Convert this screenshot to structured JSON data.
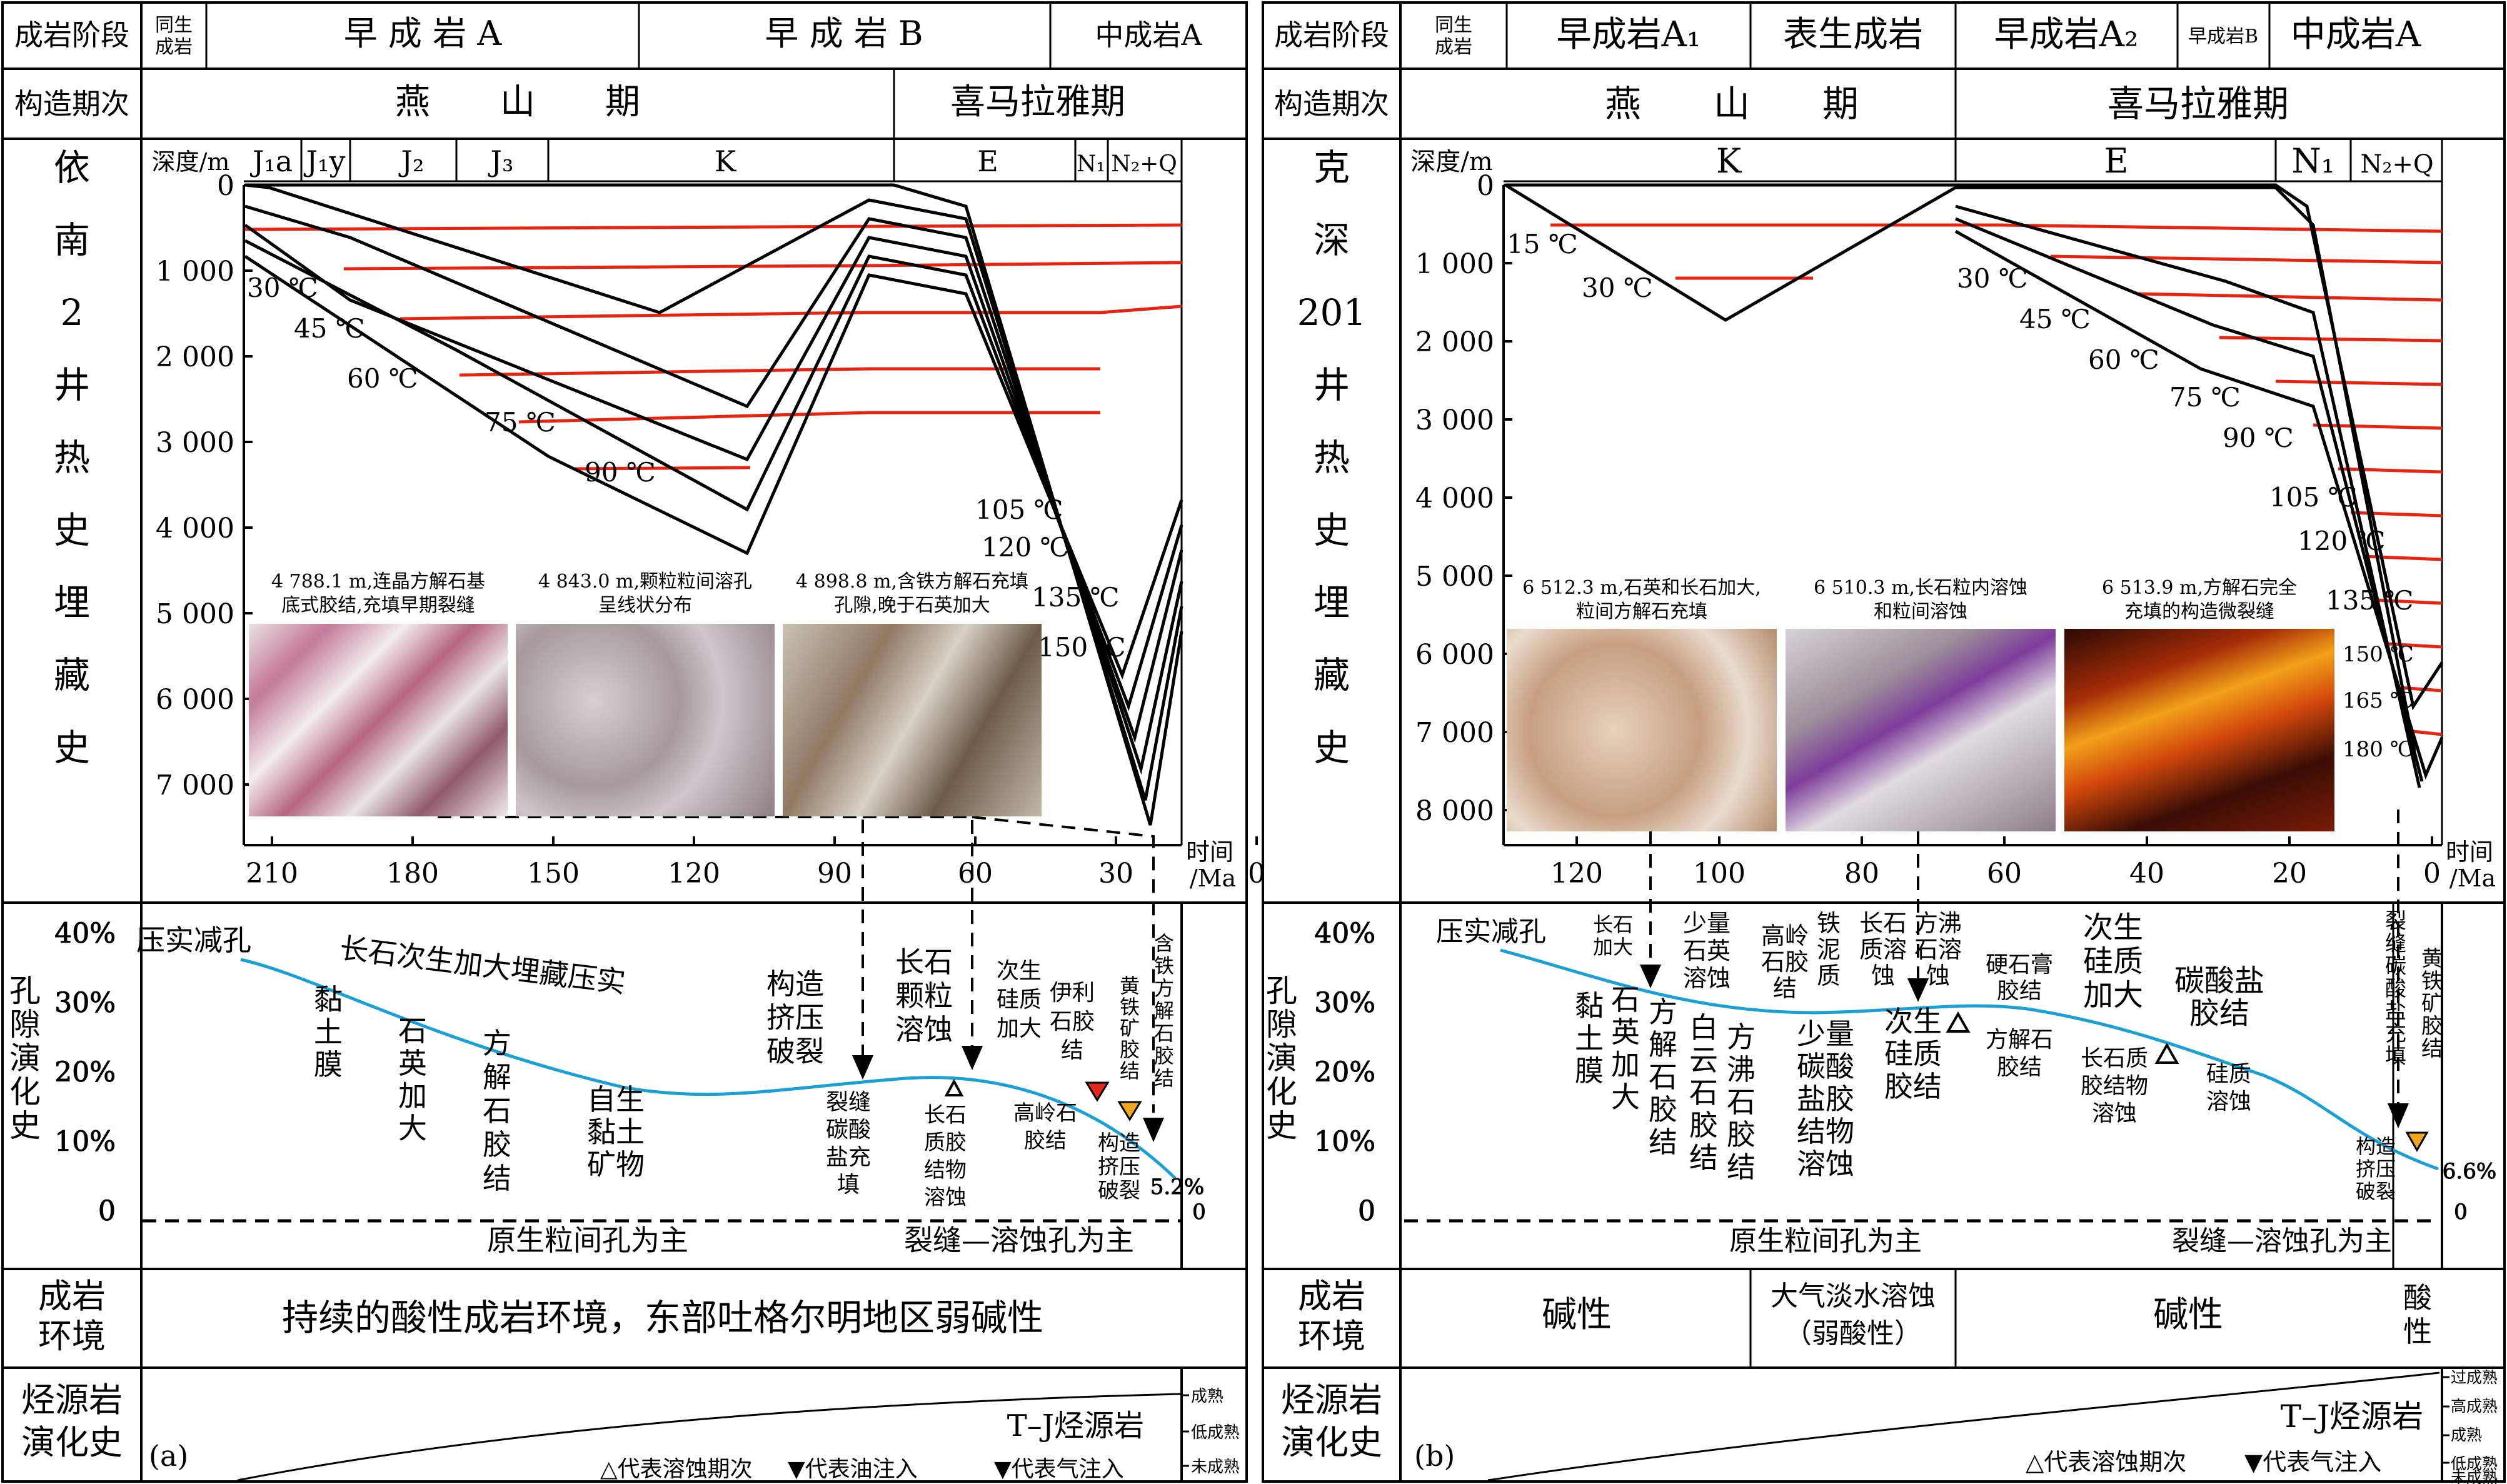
{
  "colors": {
    "isotherm": "#e8230f",
    "porosity": "#1a9fd6",
    "oil_marker": "#e0281b",
    "gas_marker": "#f2a81d",
    "line": "#000000"
  },
  "panelA": {
    "tag": "(a)",
    "well": [
      "依",
      "南",
      "2",
      "井",
      "热",
      "史",
      "埋",
      "藏",
      "史"
    ],
    "row_labels": {
      "stage": "成岩阶段",
      "tectonic": "构造期次",
      "porosity": [
        "孔",
        "隙",
        "演",
        "化",
        "史"
      ],
      "environment": [
        "成岩",
        "环境"
      ],
      "source": [
        "烃源岩",
        "演化史"
      ]
    },
    "stages": [
      "同生\n成岩",
      "早 成 岩 A",
      "早 成 岩 B",
      "中成岩A"
    ],
    "tectonic": [
      "燕　　山　　期",
      "喜马拉雅期"
    ],
    "strata": [
      "J₁a",
      "J₁y",
      "J₂",
      "J₃",
      "K",
      "E",
      "N₁",
      "N₂+Q"
    ],
    "depth_axis_label": "深度/m",
    "depth_ticks": [
      "0",
      "1 000",
      "2 000",
      "3 000",
      "4 000",
      "5 000",
      "6 000",
      "7 000"
    ],
    "time_ticks": [
      "210",
      "180",
      "150",
      "120",
      "90",
      "60",
      "30",
      "0"
    ],
    "time_label": [
      "时间",
      "/Ma"
    ],
    "isotherm_labels": [
      "30 ℃",
      "45 ℃",
      "60 ℃",
      "75 ℃",
      "90 ℃",
      "105 ℃",
      "120 ℃",
      "135 ℃",
      "150 ℃"
    ],
    "photos": [
      {
        "caption": [
          "4 788.1 m,连晶方解石基",
          "底式胶结,充填早期裂缝"
        ],
        "tone": "pink",
        "name": "thin-section-photo-4788"
      },
      {
        "caption": [
          "4 843.0 m,颗粒粒间溶孔",
          "呈线状分布"
        ],
        "tone": "gray",
        "name": "thin-section-photo-4843"
      },
      {
        "caption": [
          "4 898.8 m,含铁方解石充填",
          "孔隙,晚于石英加大"
        ],
        "tone": "brown",
        "name": "thin-section-photo-4898"
      }
    ],
    "porosity_ticks": [
      "40%",
      "30%",
      "20%",
      "10%",
      "0"
    ],
    "porosity_end_value": "5.2%",
    "porosity_zero": "0",
    "porosity_texts": {
      "compaction": "压实减孔",
      "feldspar_burial": "长石次生加大埋藏压实",
      "clay_film": [
        "黏",
        "土",
        "膜"
      ],
      "quartz_over": [
        "石",
        "英",
        "加",
        "大"
      ],
      "calcite_cement": [
        "方",
        "解",
        "石",
        "胶",
        "结"
      ],
      "authigenic_clay": [
        "自生",
        "黏土",
        "矿物"
      ],
      "tectonic_comp": [
        "构造",
        "挤压",
        "破裂"
      ],
      "fracture_fill": [
        "裂缝",
        "碳酸",
        "盐充",
        "填"
      ],
      "feldspar_dissolution": [
        "长石",
        "颗粒",
        "溶蚀"
      ],
      "feldspar_cement_dissolution": [
        "长石",
        "质胶",
        "结物",
        "溶蚀"
      ],
      "secondary_quartz": [
        "次生",
        "硅质",
        "加大"
      ],
      "illite": [
        "伊利",
        "石胶",
        "结"
      ],
      "kaolinite": [
        "高岭石",
        "胶结"
      ],
      "pyrite": [
        "黄",
        "铁",
        "矿",
        "胶",
        "结"
      ],
      "ferro_calcite": [
        "含",
        "铁",
        "方",
        "解",
        "石",
        "胶",
        "结"
      ],
      "tectonic_fracture": [
        "构造",
        "挤压",
        "破裂"
      ],
      "primary_pore": "原生粒间孔为主",
      "fracture_pore": "裂缝—溶蚀孔为主"
    },
    "environment": "持续的酸性成岩环境，东部吐格尔明地区弱碱性",
    "source_rock": "T–J烃源岩",
    "maturity": [
      "成熟",
      "低成熟",
      "未成熟"
    ],
    "legend": [
      "△代表溶蚀期次",
      "▼代表油注入",
      "▼代表气注入"
    ]
  },
  "panelB": {
    "tag": "(b)",
    "well": [
      "克",
      "深",
      "201",
      "井",
      "热",
      "史",
      "埋",
      "藏",
      "史"
    ],
    "row_labels": {
      "stage": "成岩阶段",
      "tectonic": "构造期次",
      "porosity": [
        "孔",
        "隙",
        "演",
        "化",
        "史"
      ],
      "environment": [
        "成岩",
        "环境"
      ],
      "source": [
        "烃源岩",
        "演化史"
      ]
    },
    "stages": [
      "同生\n成岩",
      "早成岩A₁",
      "表生成岩",
      "早成岩A₂",
      "早成岩B",
      "中成岩A"
    ],
    "tectonic": [
      "燕　　山　　期",
      "喜马拉雅期"
    ],
    "strata": [
      "K",
      "E",
      "N₁",
      "N₂+Q"
    ],
    "depth_axis_label": "深度/m",
    "depth_ticks": [
      "0",
      "1 000",
      "2 000",
      "3 000",
      "4 000",
      "5 000",
      "6 000",
      "7 000",
      "8 000"
    ],
    "time_ticks": [
      "120",
      "100",
      "80",
      "60",
      "40",
      "20",
      "0"
    ],
    "time_label": [
      "时间",
      "/Ma"
    ],
    "isotherm_labels": [
      "15 ℃",
      "30 ℃",
      "30 ℃",
      "45 ℃",
      "60 ℃",
      "75 ℃",
      "90 ℃",
      "105 ℃",
      "120 ℃",
      "135 ℃",
      "150 ℃",
      "165 ℃",
      "180 ℃"
    ],
    "photos": [
      {
        "caption": [
          "6 512.3 m,石英和长石加大,",
          "粒间方解石充填"
        ],
        "tone": "tan",
        "name": "thin-section-photo-6512-3"
      },
      {
        "caption": [
          "6 510.3 m,长石粒内溶蚀",
          "和粒间溶蚀"
        ],
        "tone": "purple",
        "name": "thin-section-photo-6510-3"
      },
      {
        "caption": [
          "6 513.9 m,方解石完全",
          "充填的构造微裂缝"
        ],
        "tone": "fire",
        "name": "thin-section-photo-6513-9"
      }
    ],
    "porosity_ticks": [
      "40%",
      "30%",
      "20%",
      "10%",
      "0"
    ],
    "porosity_end_value": "6.6%",
    "porosity_zero": "0",
    "porosity_texts": {
      "compaction": "压实减孔",
      "feldspar_over": [
        "长石",
        "加大"
      ],
      "minor_quartz_dissolution": [
        "少量",
        "石英",
        "溶蚀"
      ],
      "kaolinite": [
        "高岭",
        "石胶",
        "结"
      ],
      "iron_clay": [
        "铁",
        "泥",
        "质"
      ],
      "feldspar_dissolution": [
        "长石",
        "质溶",
        "蚀"
      ],
      "fangfei_dissolution": [
        "方沸",
        "石溶",
        "蚀"
      ],
      "gypsum": [
        "硬石膏",
        "胶结"
      ],
      "secondary_quartz_over": [
        "次生",
        "硅质",
        "加大"
      ],
      "carbonate_cement": [
        "碳酸盐",
        "胶结"
      ],
      "fracture_fill": [
        "裂",
        "缝",
        "碳",
        "酸",
        "盐",
        "充",
        "填"
      ],
      "pyrite": [
        "黄",
        "铁",
        "矿",
        "胶",
        "结"
      ],
      "clay_film": [
        "黏",
        "土",
        "膜"
      ],
      "quartz_over": [
        "石",
        "英",
        "加",
        "大"
      ],
      "calcite_cement": [
        "方",
        "解",
        "石",
        "胶",
        "结"
      ],
      "dolomite_cement": [
        "白",
        "云",
        "石",
        "胶",
        "结"
      ],
      "fangfei_cement": [
        "方",
        "沸",
        "石",
        "胶",
        "结"
      ],
      "carbonate_cement_dissolution": [
        "少量",
        "碳酸",
        "盐胶",
        "结物",
        "溶蚀"
      ],
      "secondary_quartz_cement": [
        "次生",
        "硅质",
        "胶结"
      ],
      "calcite_cement2": [
        "方解石",
        "胶结"
      ],
      "feldspar_cement_dissolution": [
        "长石质",
        "胶结物",
        "溶蚀"
      ],
      "siliceous_dissolution": [
        "硅质",
        "溶蚀"
      ],
      "tectonic_fracture": [
        "构造",
        "挤压",
        "破裂"
      ],
      "primary_pore": "原生粒间孔为主",
      "fracture_pore": "裂缝—溶蚀孔为主"
    },
    "environment": [
      "碱性",
      "大气淡水溶蚀",
      "（弱酸性）",
      "碱性",
      "酸",
      "性"
    ],
    "source_rock": "T–J烃源岩",
    "maturity": [
      "过成熟",
      "高成熟",
      "成熟",
      "低成熟",
      "未成熟"
    ],
    "legend": [
      "△代表溶蚀期次",
      "▼代表气注入"
    ]
  }
}
